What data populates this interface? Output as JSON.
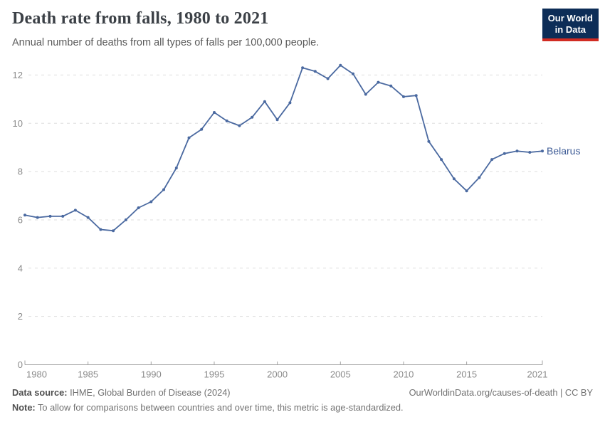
{
  "header": {
    "title": "Death rate from falls, 1980 to 2021",
    "subtitle": "Annual number of deaths from all types of falls per 100,000 people.",
    "logo": {
      "line1": "Our World",
      "line2": "in Data"
    }
  },
  "chart_data": {
    "type": "line",
    "title": "Death rate from falls, 1980 to 2021",
    "xlabel": "",
    "ylabel": "",
    "x_range": [
      1980,
      2021
    ],
    "ylim": [
      0,
      12
    ],
    "grid": "horizontal-dashed",
    "legend_position": "end-of-line-label",
    "y_ticks": [
      0,
      2,
      4,
      6,
      8,
      10,
      12
    ],
    "x_tick_years": [
      1980,
      1985,
      1990,
      1995,
      2000,
      2005,
      2010,
      2015,
      2021
    ],
    "series": [
      {
        "name": "Belarus",
        "color": "#4a69a0",
        "x": [
          1980,
          1981,
          1982,
          1983,
          1984,
          1985,
          1986,
          1987,
          1988,
          1989,
          1990,
          1991,
          1992,
          1993,
          1994,
          1995,
          1996,
          1997,
          1998,
          1999,
          2000,
          2001,
          2002,
          2003,
          2004,
          2005,
          2006,
          2007,
          2008,
          2009,
          2010,
          2011,
          2012,
          2013,
          2014,
          2015,
          2016,
          2017,
          2018,
          2019,
          2020,
          2021
        ],
        "values": [
          6.2,
          6.1,
          6.15,
          6.15,
          6.4,
          6.1,
          5.6,
          5.55,
          6.0,
          6.5,
          6.75,
          7.25,
          8.15,
          9.4,
          9.75,
          10.45,
          10.1,
          9.9,
          10.25,
          10.9,
          10.15,
          10.85,
          12.3,
          12.15,
          11.85,
          12.4,
          12.05,
          11.2,
          11.7,
          11.55,
          11.1,
          11.15,
          9.25,
          8.5,
          7.7,
          7.2,
          7.75,
          8.5,
          8.75,
          8.85,
          8.8,
          8.85
        ]
      }
    ]
  },
  "footer": {
    "source_label": "Data source:",
    "source_text": "IHME, Global Burden of Disease (2024)",
    "credit": "OurWorldinData.org/causes-of-death | CC BY",
    "note_label": "Note:",
    "note_text": "To allow for comparisons between countries and over time, this metric is age-standardized."
  },
  "colors": {
    "line": "#4a69a0",
    "entity_label": "#3d5b96",
    "axis": "#a3a3a3",
    "tick_label": "#8b8b8b",
    "gridline": "#dedede",
    "logo_background": "#0d2d57",
    "logo_bar": "#d12b22"
  }
}
